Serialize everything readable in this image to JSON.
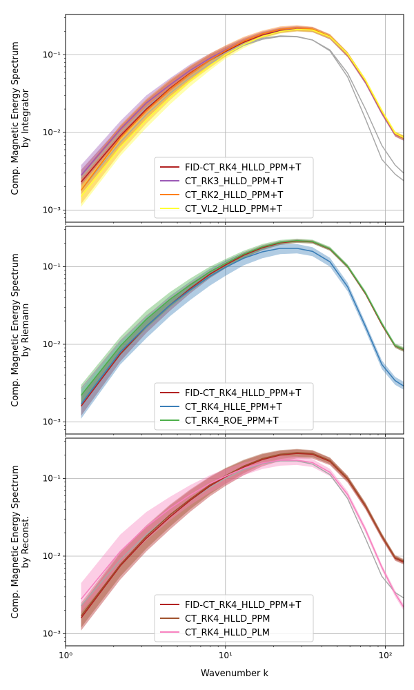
{
  "chart_data": [
    {
      "type": "line",
      "ylabel_lines": [
        "Comp. Magnetic Energy Spectrum",
        "by Integrator"
      ],
      "xlabel": "",
      "xscale": "log",
      "yscale": "log",
      "xlim": [
        1,
        130
      ],
      "ylim": [
        0.0007,
        0.33
      ],
      "ytick_labels": [
        "10⁻³",
        "10⁻²",
        "10⁻¹"
      ],
      "ytick_values": [
        0.001,
        0.01,
        0.1
      ],
      "grid": true,
      "legend_position": "lower-center",
      "x": [
        1.25,
        2.2,
        3.2,
        4.5,
        6,
        8,
        10,
        13,
        17,
        22,
        28,
        35,
        45,
        58,
        75,
        95,
        115,
        130
      ],
      "series": [
        {
          "name": "FID-CT_RK4_HLLD_PPM+T",
          "color": "#b22222",
          "values": [
            0.0023,
            0.009,
            0.02,
            0.037,
            0.058,
            0.085,
            0.11,
            0.145,
            0.18,
            0.205,
            0.215,
            0.21,
            0.17,
            0.1,
            0.045,
            0.018,
            0.0095,
            0.0085
          ],
          "lower": [
            0.0016,
            0.0065,
            0.015,
            0.029,
            0.047,
            0.072,
            0.096,
            0.13,
            0.165,
            0.19,
            0.2,
            0.195,
            0.158,
            0.093,
            0.042,
            0.0168,
            0.0089,
            0.0079
          ],
          "upper": [
            0.0033,
            0.012,
            0.026,
            0.046,
            0.07,
            0.1,
            0.125,
            0.16,
            0.195,
            0.22,
            0.23,
            0.225,
            0.182,
            0.108,
            0.048,
            0.0192,
            0.0101,
            0.0091
          ]
        },
        {
          "name": "CT_RK3_HLLD_PPM+T",
          "color": "#9b59b6",
          "values": [
            0.0028,
            0.011,
            0.024,
            0.041,
            0.063,
            0.09,
            0.115,
            0.15,
            0.185,
            0.21,
            0.22,
            0.212,
            0.17,
            0.1,
            0.045,
            0.018,
            0.0094,
            0.0084
          ],
          "lower": [
            0.002,
            0.0085,
            0.019,
            0.033,
            0.052,
            0.077,
            0.1,
            0.135,
            0.17,
            0.195,
            0.205,
            0.197,
            0.158,
            0.093,
            0.042,
            0.0168,
            0.0088,
            0.0078
          ],
          "upper": [
            0.0038,
            0.014,
            0.03,
            0.05,
            0.075,
            0.104,
            0.13,
            0.165,
            0.2,
            0.225,
            0.235,
            0.227,
            0.182,
            0.107,
            0.048,
            0.0192,
            0.01,
            0.009
          ]
        },
        {
          "name": "CT_RK2_HLLD_PPM+T",
          "color": "#ff7f0e",
          "values": [
            0.0018,
            0.0085,
            0.019,
            0.036,
            0.057,
            0.085,
            0.113,
            0.15,
            0.186,
            0.212,
            0.222,
            0.214,
            0.172,
            0.101,
            0.046,
            0.0185,
            0.0096,
            0.0085
          ],
          "lower": [
            0.0012,
            0.0055,
            0.013,
            0.026,
            0.044,
            0.068,
            0.094,
            0.13,
            0.166,
            0.193,
            0.204,
            0.198,
            0.16,
            0.094,
            0.043,
            0.0172,
            0.009,
            0.0079
          ],
          "upper": [
            0.0028,
            0.0125,
            0.027,
            0.048,
            0.072,
            0.104,
            0.132,
            0.17,
            0.205,
            0.232,
            0.24,
            0.23,
            0.185,
            0.109,
            0.049,
            0.0198,
            0.0102,
            0.0091
          ]
        },
        {
          "name": "CT_VL2_HLLD_PPM+T",
          "color": "#ffff33",
          "values": [
            0.0015,
            0.0065,
            0.0145,
            0.028,
            0.046,
            0.072,
            0.1,
            0.135,
            0.172,
            0.2,
            0.212,
            0.208,
            0.17,
            0.102,
            0.047,
            0.019,
            0.0098,
            0.0086
          ],
          "lower": [
            0.0011,
            0.005,
            0.0115,
            0.023,
            0.039,
            0.063,
            0.089,
            0.122,
            0.158,
            0.187,
            0.2,
            0.196,
            0.16,
            0.096,
            0.044,
            0.0178,
            0.0092,
            0.008
          ],
          "upper": [
            0.0021,
            0.0085,
            0.018,
            0.034,
            0.054,
            0.082,
            0.111,
            0.148,
            0.186,
            0.213,
            0.224,
            0.22,
            0.18,
            0.108,
            0.05,
            0.0202,
            0.0104,
            0.0092
          ]
        },
        {
          "name": "",
          "color": "#a8a8a8",
          "values": [
            0.0026,
            0.01,
            0.021,
            0.037,
            0.057,
            0.083,
            0.107,
            0.138,
            0.163,
            0.175,
            0.172,
            0.155,
            0.115,
            0.058,
            0.02,
            0.0068,
            0.0038,
            0.003
          ]
        },
        {
          "name": "",
          "color": "#a8a8a8",
          "values": [
            0.0018,
            0.0075,
            0.017,
            0.032,
            0.051,
            0.077,
            0.1,
            0.132,
            0.158,
            0.172,
            0.17,
            0.155,
            0.112,
            0.052,
            0.015,
            0.0045,
            0.0029,
            0.0024
          ]
        }
      ]
    },
    {
      "type": "line",
      "ylabel_lines": [
        "Comp. Magnetic Energy Spectrum",
        "by Riemann"
      ],
      "xlabel": "",
      "xscale": "log",
      "yscale": "log",
      "xlim": [
        1,
        130
      ],
      "ylim": [
        0.0007,
        0.33
      ],
      "ytick_labels": [
        "10⁻³",
        "10⁻²",
        "10⁻¹"
      ],
      "ytick_values": [
        0.001,
        0.01,
        0.1
      ],
      "grid": true,
      "legend_position": "lower-center",
      "x": [
        1.25,
        2.2,
        3.2,
        4.5,
        6,
        8,
        10,
        13,
        17,
        22,
        28,
        35,
        45,
        58,
        75,
        95,
        115,
        130
      ],
      "series": [
        {
          "name": "FID-CT_RK4_HLLD_PPM+T",
          "color": "#b22222",
          "values": [
            0.0016,
            0.0075,
            0.017,
            0.032,
            0.052,
            0.08,
            0.105,
            0.14,
            0.175,
            0.202,
            0.213,
            0.208,
            0.168,
            0.1,
            0.045,
            0.018,
            0.0095,
            0.0085
          ],
          "lower": [
            0.0012,
            0.006,
            0.014,
            0.027,
            0.045,
            0.071,
            0.095,
            0.128,
            0.162,
            0.19,
            0.202,
            0.198,
            0.16,
            0.095,
            0.043,
            0.0172,
            0.009,
            0.008
          ],
          "upper": [
            0.0022,
            0.0095,
            0.021,
            0.038,
            0.06,
            0.09,
            0.116,
            0.153,
            0.188,
            0.214,
            0.224,
            0.218,
            0.176,
            0.105,
            0.047,
            0.0188,
            0.01,
            0.009
          ]
        },
        {
          "name": "CT_RK4_HLLE_PPM+T",
          "color": "#3b7fb8",
          "values": [
            0.0017,
            0.008,
            0.017,
            0.032,
            0.05,
            0.075,
            0.098,
            0.128,
            0.155,
            0.172,
            0.172,
            0.157,
            0.115,
            0.055,
            0.017,
            0.0055,
            0.0034,
            0.0029
          ],
          "lower": [
            0.0011,
            0.0055,
            0.012,
            0.023,
            0.037,
            0.057,
            0.076,
            0.104,
            0.128,
            0.145,
            0.148,
            0.136,
            0.1,
            0.048,
            0.015,
            0.0048,
            0.003,
            0.0026
          ],
          "upper": [
            0.0026,
            0.011,
            0.023,
            0.042,
            0.064,
            0.094,
            0.12,
            0.152,
            0.18,
            0.196,
            0.195,
            0.178,
            0.13,
            0.062,
            0.019,
            0.0062,
            0.0038,
            0.0033
          ]
        },
        {
          "name": "CT_RK4_ROE_PPM+T",
          "color": "#4daf4a",
          "values": [
            0.0022,
            0.0095,
            0.021,
            0.038,
            0.058,
            0.086,
            0.11,
            0.145,
            0.18,
            0.206,
            0.216,
            0.21,
            0.17,
            0.101,
            0.046,
            0.0185,
            0.0096,
            0.0086
          ],
          "lower": [
            0.0016,
            0.0072,
            0.016,
            0.03,
            0.048,
            0.073,
            0.096,
            0.13,
            0.165,
            0.192,
            0.203,
            0.198,
            0.16,
            0.095,
            0.043,
            0.0173,
            0.009,
            0.008
          ],
          "upper": [
            0.003,
            0.0125,
            0.027,
            0.047,
            0.07,
            0.1,
            0.125,
            0.16,
            0.195,
            0.22,
            0.229,
            0.222,
            0.18,
            0.107,
            0.049,
            0.0197,
            0.0102,
            0.0092
          ]
        },
        {
          "name": "",
          "color": "#a8a8a8",
          "values": [
            0.0027,
            0.011,
            0.023,
            0.04,
            0.061,
            0.088,
            0.113,
            0.148,
            0.183,
            0.208,
            0.218,
            0.211,
            0.17,
            0.1,
            0.045,
            0.0185,
            0.0096,
            0.0086
          ]
        }
      ]
    },
    {
      "type": "line",
      "ylabel_lines": [
        "Comp. Magnetic Energy Spectrum",
        "by Reconst."
      ],
      "xlabel": "Wavenumber k",
      "xscale": "log",
      "yscale": "log",
      "xlim": [
        1,
        130
      ],
      "ylim": [
        0.0007,
        0.33
      ],
      "xtick_labels": [
        "10⁰",
        "10¹",
        "10²"
      ],
      "xtick_values": [
        1,
        10,
        100
      ],
      "ytick_labels": [
        "10⁻³",
        "10⁻²",
        "10⁻¹"
      ],
      "ytick_values": [
        0.001,
        0.01,
        0.1
      ],
      "grid": true,
      "legend_position": "lower-center",
      "x": [
        1.25,
        2.2,
        3.2,
        4.5,
        6,
        8,
        10,
        13,
        17,
        22,
        28,
        35,
        45,
        58,
        75,
        95,
        115,
        130
      ],
      "series": [
        {
          "name": "FID-CT_RK4_HLLD_PPM+T",
          "color": "#b22222",
          "values": [
            0.0016,
            0.0075,
            0.017,
            0.032,
            0.052,
            0.08,
            0.105,
            0.14,
            0.175,
            0.2,
            0.21,
            0.205,
            0.166,
            0.098,
            0.044,
            0.018,
            0.0094,
            0.0084
          ],
          "lower": [
            0.0011,
            0.005,
            0.0115,
            0.022,
            0.037,
            0.059,
            0.08,
            0.11,
            0.143,
            0.168,
            0.181,
            0.18,
            0.148,
            0.088,
            0.04,
            0.0164,
            0.0087,
            0.0078
          ],
          "upper": [
            0.0023,
            0.011,
            0.024,
            0.045,
            0.07,
            0.104,
            0.134,
            0.17,
            0.205,
            0.228,
            0.236,
            0.228,
            0.184,
            0.108,
            0.048,
            0.0195,
            0.0101,
            0.009
          ]
        },
        {
          "name": "CT_RK4_HLLD_PPM",
          "color": "#a0522d",
          "values": [
            0.0017,
            0.0078,
            0.018,
            0.034,
            0.054,
            0.083,
            0.108,
            0.144,
            0.18,
            0.205,
            0.215,
            0.21,
            0.17,
            0.1,
            0.045,
            0.0183,
            0.0096,
            0.0086
          ],
          "lower": [
            0.0012,
            0.0055,
            0.0125,
            0.024,
            0.04,
            0.063,
            0.085,
            0.117,
            0.152,
            0.178,
            0.19,
            0.188,
            0.153,
            0.091,
            0.041,
            0.0168,
            0.0089,
            0.008
          ],
          "upper": [
            0.0025,
            0.0115,
            0.025,
            0.046,
            0.072,
            0.106,
            0.136,
            0.174,
            0.21,
            0.232,
            0.24,
            0.232,
            0.186,
            0.109,
            0.049,
            0.0198,
            0.0103,
            0.0092
          ]
        },
        {
          "name": "CT_RK4_HLLD_PLM",
          "color": "#f781bf",
          "values": [
            0.0028,
            0.0115,
            0.024,
            0.041,
            0.061,
            0.086,
            0.107,
            0.135,
            0.158,
            0.172,
            0.172,
            0.16,
            0.12,
            0.062,
            0.022,
            0.0072,
            0.0033,
            0.0022
          ],
          "lower": [
            0.0019,
            0.0075,
            0.016,
            0.029,
            0.045,
            0.066,
            0.084,
            0.11,
            0.132,
            0.146,
            0.149,
            0.14,
            0.107,
            0.056,
            0.02,
            0.0066,
            0.003,
            0.002
          ],
          "upper": [
            0.0045,
            0.019,
            0.037,
            0.058,
            0.082,
            0.11,
            0.132,
            0.16,
            0.182,
            0.194,
            0.192,
            0.178,
            0.133,
            0.068,
            0.024,
            0.0078,
            0.0036,
            0.0024
          ]
        },
        {
          "name": "",
          "color": "#a8a8a8",
          "values": [
            0.0023,
            0.009,
            0.019,
            0.034,
            0.052,
            0.077,
            0.1,
            0.13,
            0.155,
            0.168,
            0.168,
            0.153,
            0.112,
            0.055,
            0.017,
            0.0055,
            0.0034,
            0.0029
          ]
        }
      ]
    }
  ]
}
